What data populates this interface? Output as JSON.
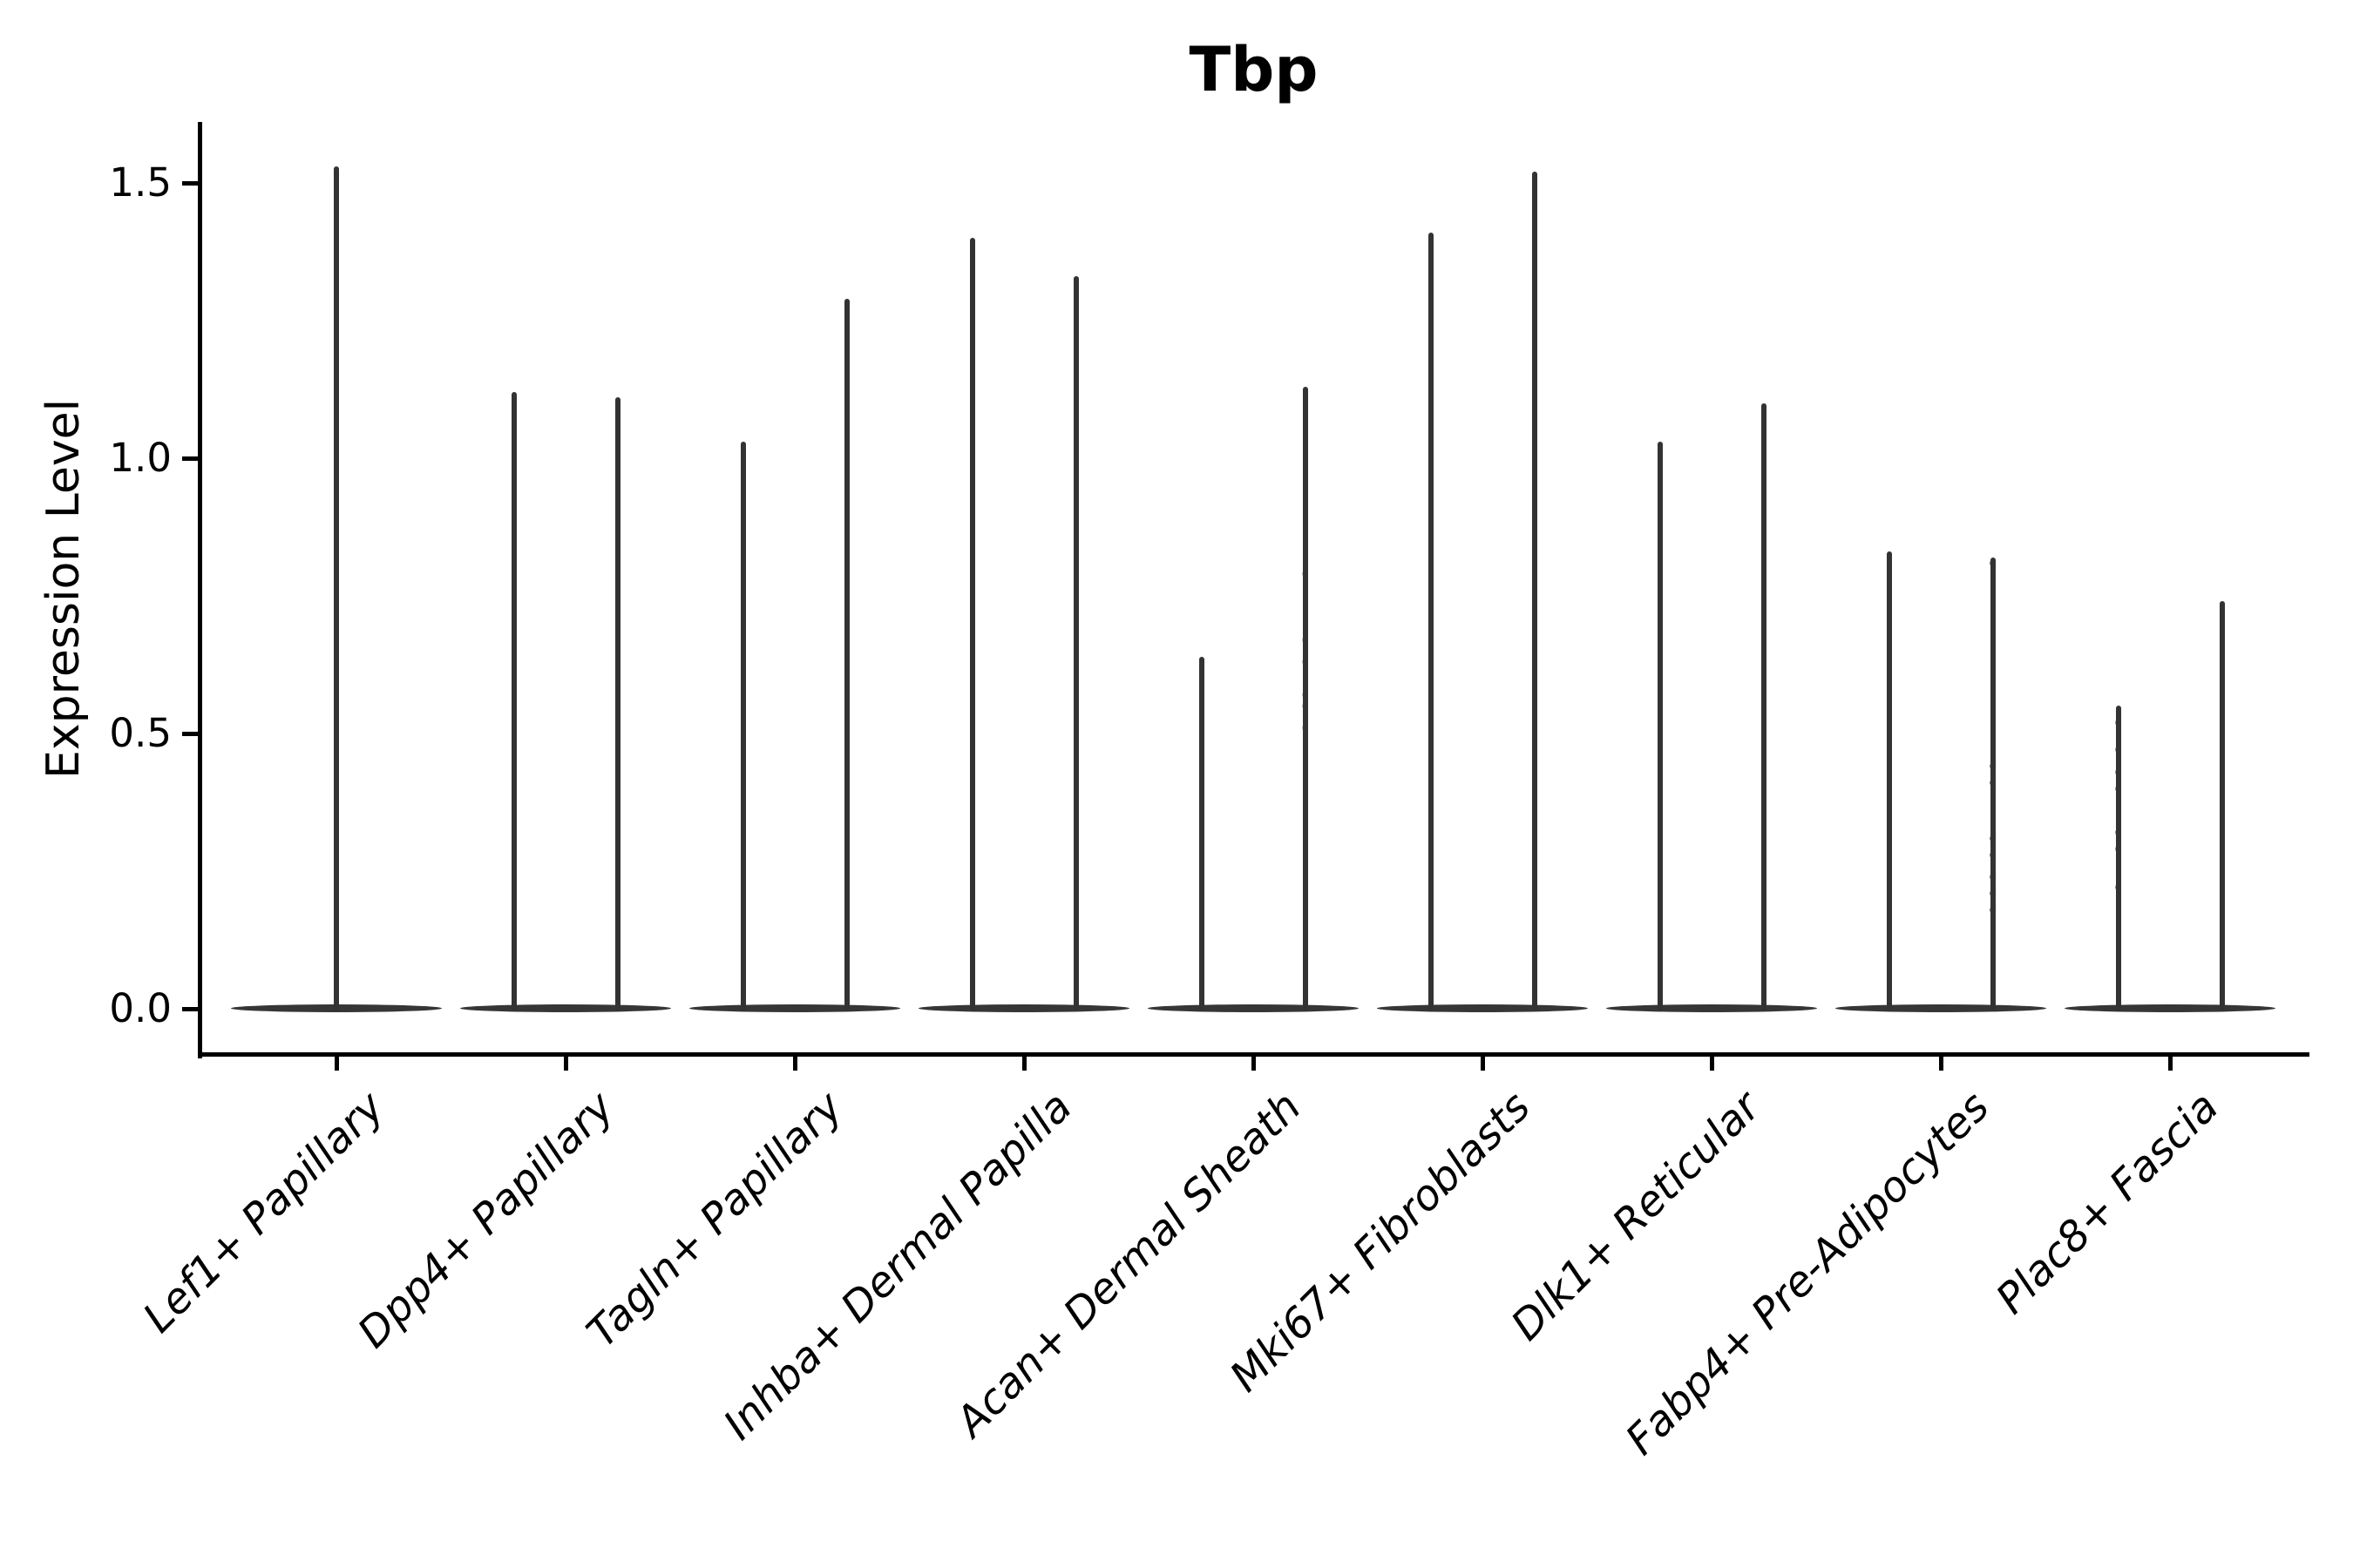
{
  "chart_data": {
    "type": "violin",
    "title": "Tbp",
    "ylabel": "Expression Level",
    "yticks": [
      "0.0",
      "0.5",
      "1.0",
      "1.5"
    ],
    "y_axis_range": [
      0.0,
      1.5
    ],
    "x_tick_rotation_deg": 45,
    "grid": false,
    "legend": false,
    "top_spine": false,
    "right_spine": false,
    "base_value": 0.0,
    "colors": {
      "violin_line": "#333333",
      "violin_base": "#363636",
      "axis": "#000000",
      "background": "#ffffff",
      "text": "#000000"
    },
    "categories": [
      {
        "label": "Lef1+ Papillary",
        "violins": [
          {
            "position": "center",
            "max": 1.53
          }
        ]
      },
      {
        "label": "Dpp4+ Papillary",
        "violins": [
          {
            "position": "left",
            "max": 1.12
          },
          {
            "position": "right",
            "max": 1.11
          }
        ]
      },
      {
        "label": "Tagln+ Papillary",
        "violins": [
          {
            "position": "left",
            "max": 1.03
          },
          {
            "position": "right",
            "max": 1.29
          }
        ]
      },
      {
        "label": "Inhba+ Dermal Papilla",
        "violins": [
          {
            "position": "left",
            "max": 1.4
          },
          {
            "position": "right",
            "max": 1.33
          }
        ]
      },
      {
        "label": "Acan+ Dermal Sheath",
        "violins": [
          {
            "position": "left",
            "max": 0.64
          },
          {
            "position": "right",
            "max": 1.13,
            "points": [
              0.79,
              0.67,
              0.63,
              0.57,
              0.55,
              0.51
            ],
            "points_opacity": 0.35
          }
        ]
      },
      {
        "label": "Mki67+ Fibroblasts",
        "violins": [
          {
            "position": "left",
            "max": 1.41
          },
          {
            "position": "right",
            "max": 1.52
          }
        ]
      },
      {
        "label": "Dlk1+ Reticular",
        "violins": [
          {
            "position": "left",
            "max": 1.03
          },
          {
            "position": "right",
            "max": 1.1
          }
        ]
      },
      {
        "label": "Fabp4+ Pre-Adipocytes",
        "violins": [
          {
            "position": "left",
            "max": 0.83
          },
          {
            "position": "right",
            "max": 0.82,
            "points": [
              0.81,
              0.44,
              0.41,
              0.31,
              0.28,
              0.24,
              0.21,
              0.18
            ],
            "points_opacity": 0.7
          }
        ]
      },
      {
        "label": "Plac8+ Fascia",
        "violins": [
          {
            "position": "left",
            "max": 0.55,
            "points": [
              0.52,
              0.47,
              0.43,
              0.4,
              0.32,
              0.29,
              0.22
            ],
            "points_opacity": 0.6
          },
          {
            "position": "right",
            "max": 0.74
          }
        ]
      }
    ]
  }
}
